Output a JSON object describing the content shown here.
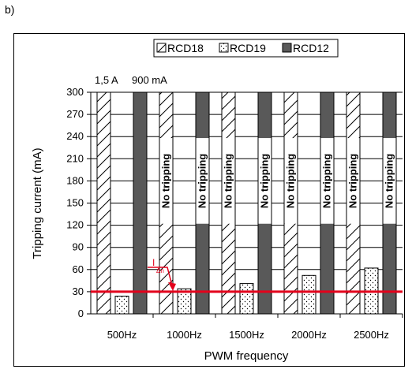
{
  "panel_label": "b)",
  "colors": {
    "threshold": "#e3001b",
    "dark_bar": "#595959"
  },
  "chart_data": {
    "type": "bar",
    "categories": [
      "500Hz",
      "1000Hz",
      "1500Hz",
      "2000Hz",
      "2500Hz"
    ],
    "series": [
      {
        "name": "RCD18",
        "pattern": "hatch",
        "values": [
          300,
          300,
          300,
          300,
          300
        ]
      },
      {
        "name": "RCD19",
        "pattern": "dots",
        "values": [
          24,
          34,
          41,
          52,
          62
        ]
      },
      {
        "name": "RCD12",
        "pattern": "solid",
        "values": [
          300,
          300,
          300,
          300,
          300
        ]
      }
    ],
    "xlabel": "PWM frequency",
    "ylabel": "Tripping current (mA)",
    "ylim": [
      0,
      300
    ],
    "yticks": [
      0,
      30,
      60,
      90,
      120,
      150,
      180,
      210,
      240,
      270,
      300
    ],
    "legend_position": "top",
    "threshold": {
      "value": 30,
      "label": "I",
      "label_sub": "Δn"
    },
    "annotations": {
      "top_note_1": "1,5 A",
      "top_note_2": "900 mA",
      "no_tripping": "No tripping"
    }
  }
}
